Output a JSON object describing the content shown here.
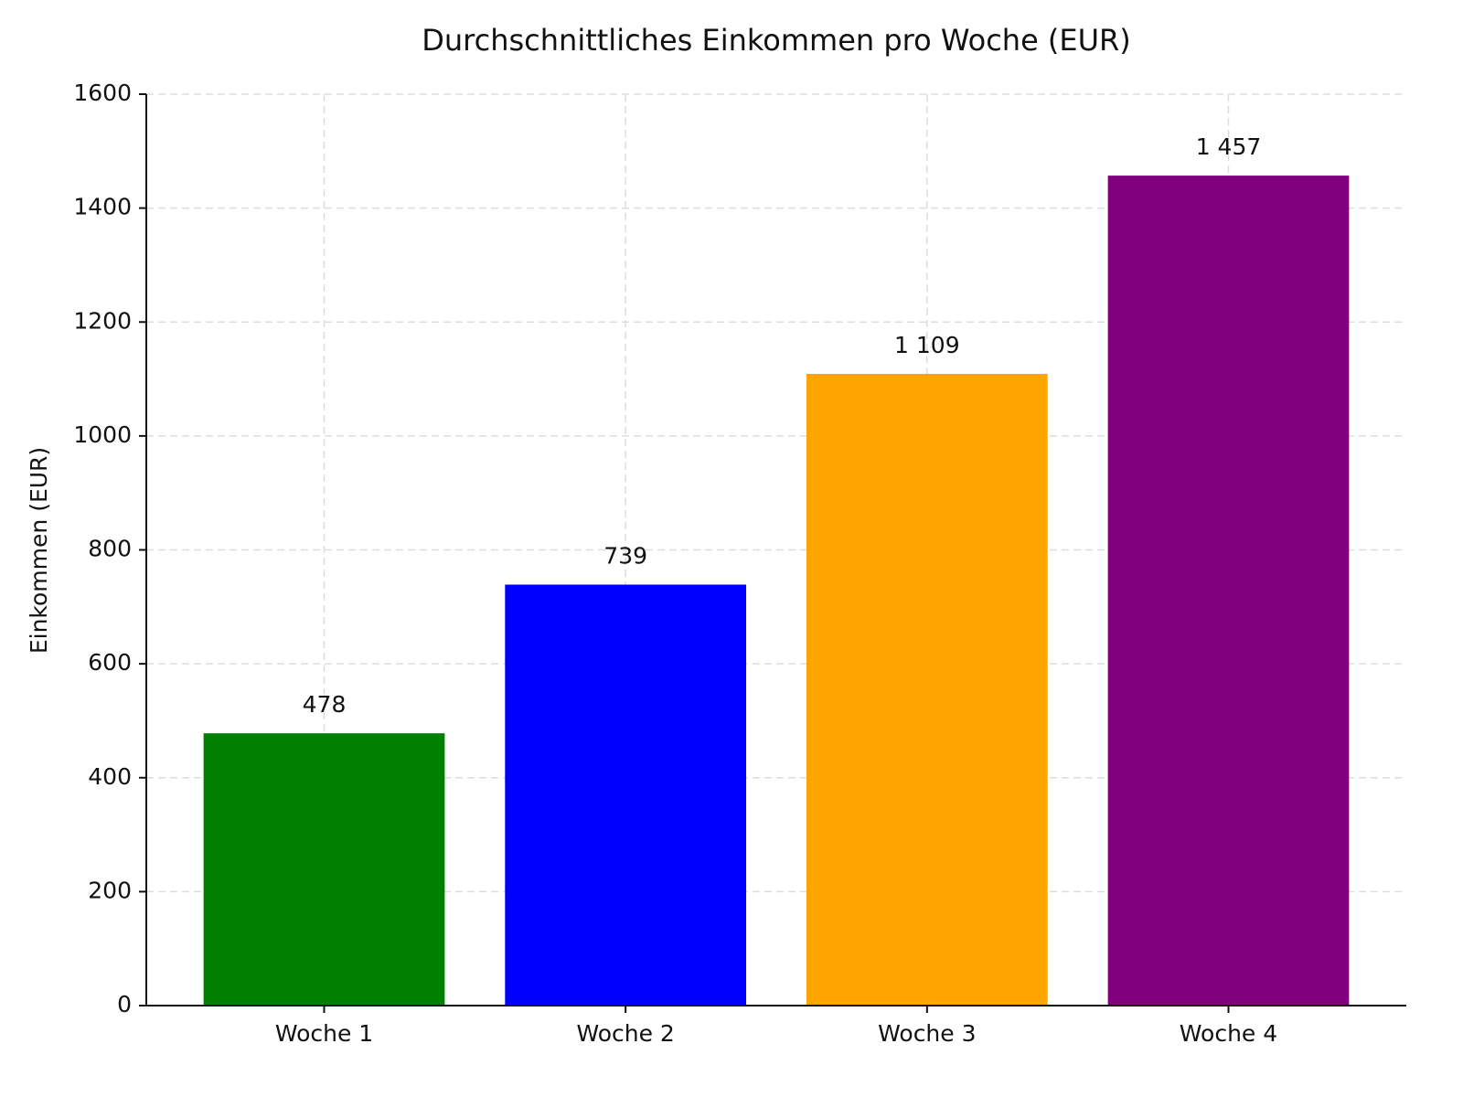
{
  "chart_data": {
    "type": "bar",
    "title": "Durchschnittliches Einkommen pro Woche (EUR)",
    "y_label": "Einkommen (EUR)",
    "categories": [
      "Woche 1",
      "Woche 2",
      "Woche 3",
      "Woche 4"
    ],
    "values": [
      478,
      739,
      1109,
      1457
    ],
    "value_labels": [
      "478",
      "739",
      "1 109",
      "1 457"
    ],
    "colors": [
      "#008000",
      "#0000ff",
      "#ffa500",
      "#800080"
    ],
    "ylim": [
      0,
      1600
    ],
    "yticks": [
      0,
      200,
      400,
      600,
      800,
      1000,
      1200,
      1400,
      1600
    ],
    "grid": true
  }
}
